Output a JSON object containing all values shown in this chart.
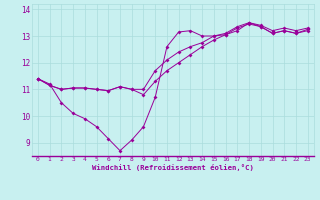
{
  "title": "",
  "xlabel": "Windchill (Refroidissement éolien,°C)",
  "ylabel": "",
  "bg_color": "#c8f0f0",
  "line_color": "#990099",
  "grid_color": "#aadddd",
  "xlim": [
    -0.5,
    23.5
  ],
  "ylim": [
    8.5,
    14.2
  ],
  "xticks": [
    0,
    1,
    2,
    3,
    4,
    5,
    6,
    7,
    8,
    9,
    10,
    11,
    12,
    13,
    14,
    15,
    16,
    17,
    18,
    19,
    20,
    21,
    22,
    23
  ],
  "yticks": [
    9,
    10,
    11,
    12,
    13,
    14
  ],
  "series": [
    [
      11.4,
      11.2,
      10.5,
      10.1,
      9.9,
      9.6,
      9.15,
      8.7,
      9.1,
      9.6,
      10.7,
      12.6,
      13.15,
      13.2,
      13.0,
      13.0,
      13.05,
      13.2,
      13.5,
      13.35,
      13.1,
      13.2,
      13.1,
      13.2
    ],
    [
      11.4,
      11.15,
      11.0,
      11.05,
      11.05,
      11.0,
      10.95,
      11.1,
      11.0,
      11.0,
      11.7,
      12.1,
      12.4,
      12.6,
      12.75,
      13.0,
      13.1,
      13.35,
      13.5,
      13.4,
      13.2,
      13.3,
      13.2,
      13.3
    ],
    [
      11.4,
      11.15,
      11.0,
      11.05,
      11.05,
      11.0,
      10.95,
      11.1,
      11.0,
      10.8,
      11.3,
      11.7,
      12.0,
      12.3,
      12.6,
      12.85,
      13.05,
      13.3,
      13.45,
      13.35,
      13.1,
      13.2,
      13.1,
      13.25
    ]
  ]
}
